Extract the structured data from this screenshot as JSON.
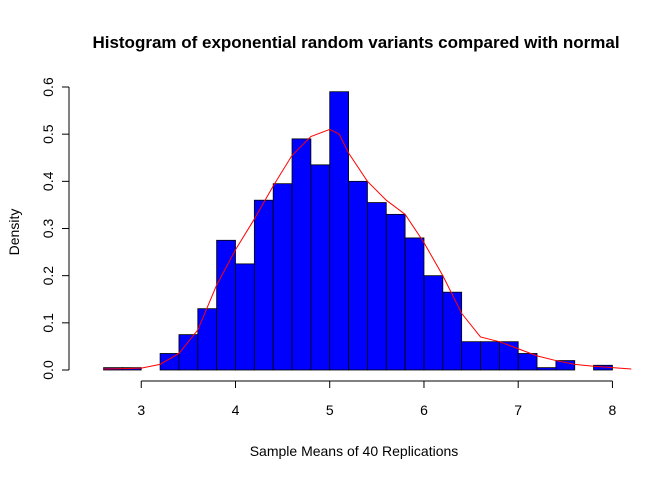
{
  "chart_data": {
    "type": "bar",
    "title": "Histogram of exponential random variants compared with normal",
    "xlabel": "Sample Means of 40 Replications",
    "ylabel": "Density",
    "xlim": [
      2.35,
      8.25
    ],
    "ylim": [
      0,
      0.6
    ],
    "x_ticks": [
      3,
      4,
      5,
      6,
      7,
      8
    ],
    "y_ticks": [
      0.0,
      0.1,
      0.2,
      0.3,
      0.4,
      0.5,
      0.6
    ],
    "x_tick_labels": [
      "3",
      "4",
      "5",
      "6",
      "7",
      "8"
    ],
    "y_tick_labels": [
      "0.0",
      "0.1",
      "0.2",
      "0.3",
      "0.4",
      "0.5",
      "0.6"
    ],
    "bin_width": 0.2,
    "bins": [
      {
        "x0": 2.6,
        "x1": 2.8,
        "density": 0.005
      },
      {
        "x0": 2.8,
        "x1": 3.0,
        "density": 0.005
      },
      {
        "x0": 3.0,
        "x1": 3.2,
        "density": 0.0
      },
      {
        "x0": 3.2,
        "x1": 3.4,
        "density": 0.035
      },
      {
        "x0": 3.4,
        "x1": 3.6,
        "density": 0.075
      },
      {
        "x0": 3.6,
        "x1": 3.8,
        "density": 0.13
      },
      {
        "x0": 3.8,
        "x1": 4.0,
        "density": 0.275
      },
      {
        "x0": 4.0,
        "x1": 4.2,
        "density": 0.225
      },
      {
        "x0": 4.2,
        "x1": 4.4,
        "density": 0.36
      },
      {
        "x0": 4.4,
        "x1": 4.6,
        "density": 0.395
      },
      {
        "x0": 4.6,
        "x1": 4.8,
        "density": 0.49
      },
      {
        "x0": 4.8,
        "x1": 5.0,
        "density": 0.435
      },
      {
        "x0": 5.0,
        "x1": 5.2,
        "density": 0.59
      },
      {
        "x0": 5.2,
        "x1": 5.4,
        "density": 0.4
      },
      {
        "x0": 5.4,
        "x1": 5.6,
        "density": 0.355
      },
      {
        "x0": 5.6,
        "x1": 5.8,
        "density": 0.33
      },
      {
        "x0": 5.8,
        "x1": 6.0,
        "density": 0.28
      },
      {
        "x0": 6.0,
        "x1": 6.2,
        "density": 0.2
      },
      {
        "x0": 6.2,
        "x1": 6.4,
        "density": 0.165
      },
      {
        "x0": 6.4,
        "x1": 6.6,
        "density": 0.06
      },
      {
        "x0": 6.6,
        "x1": 6.8,
        "density": 0.06
      },
      {
        "x0": 6.8,
        "x1": 7.0,
        "density": 0.06
      },
      {
        "x0": 7.0,
        "x1": 7.2,
        "density": 0.035
      },
      {
        "x0": 7.2,
        "x1": 7.4,
        "density": 0.005
      },
      {
        "x0": 7.4,
        "x1": 7.6,
        "density": 0.02
      },
      {
        "x0": 7.6,
        "x1": 7.8,
        "density": 0.0
      },
      {
        "x0": 7.8,
        "x1": 8.0,
        "density": 0.01
      }
    ],
    "curve": {
      "x": [
        2.6,
        2.8,
        3.0,
        3.2,
        3.4,
        3.6,
        3.8,
        4.0,
        4.2,
        4.4,
        4.6,
        4.8,
        5.0,
        5.1,
        5.2,
        5.4,
        5.6,
        5.8,
        6.0,
        6.2,
        6.4,
        6.6,
        6.8,
        7.0,
        7.2,
        7.4,
        7.6,
        7.8,
        8.0,
        8.2
      ],
      "y": [
        0.002,
        0.003,
        0.004,
        0.012,
        0.035,
        0.085,
        0.18,
        0.255,
        0.32,
        0.39,
        0.455,
        0.495,
        0.51,
        0.5,
        0.46,
        0.4,
        0.36,
        0.33,
        0.27,
        0.2,
        0.12,
        0.07,
        0.06,
        0.045,
        0.03,
        0.02,
        0.012,
        0.008,
        0.005,
        0.002
      ]
    },
    "colors": {
      "bar_fill": "#0000FF",
      "bar_stroke": "#000000",
      "curve": "#FF0000"
    },
    "grid": false,
    "legend": "none"
  }
}
